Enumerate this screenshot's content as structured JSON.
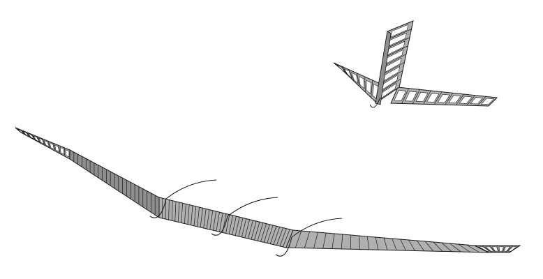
{
  "figure": {
    "main_wing": {
      "panel_count_left": 10,
      "panel_count_center": 62,
      "panel_count_right": 14,
      "pod_count": 3
    },
    "tail_assembly": {
      "horizontal_panel_count": 9,
      "vertical_panel_count": 8
    },
    "colors": {
      "background": "#ffffff",
      "structure_fill": "#b0b0b0",
      "structure_shade": "#8e8e8e",
      "outline": "#1a1a1a",
      "rib_opening": "#ffffff"
    }
  }
}
